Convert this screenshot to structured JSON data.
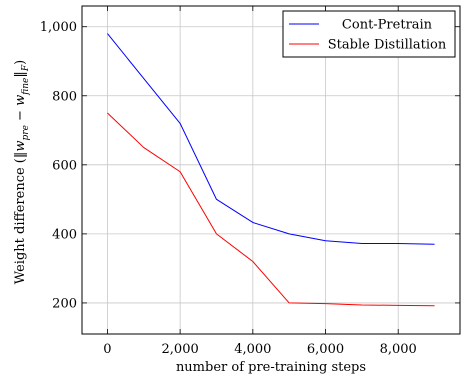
{
  "chart_data": {
    "type": "line",
    "xlabel": "number of pre-training steps",
    "ylabel": "Weight difference (||w_pre − w_fine||_F)",
    "ylabel_parts": {
      "prefix": "Weight difference (",
      "math": "‖w",
      "sub1": "pre",
      "minus": " − w",
      "sub2": "fine",
      "close": "‖",
      "sub3": "F",
      "suffix": ")"
    },
    "xlim": [
      -700,
      9700
    ],
    "ylim": [
      110,
      1060
    ],
    "x_ticks": [
      0,
      2000,
      4000,
      6000,
      8000
    ],
    "x_tick_labels": [
      "0",
      "2,000",
      "4,000",
      "6,000",
      "8,000"
    ],
    "y_ticks": [
      200,
      400,
      600,
      800,
      1000
    ],
    "y_tick_labels": [
      "200",
      "400",
      "600",
      "800",
      "1,000"
    ],
    "grid": true,
    "legend_position": "top-right",
    "series": [
      {
        "name": "Cont-Pretrain",
        "color": "#0000ff",
        "x": [
          0,
          1000,
          2000,
          3000,
          4000,
          5000,
          6000,
          7000,
          8000,
          9000
        ],
        "y": [
          980,
          850,
          720,
          500,
          433,
          400,
          380,
          372,
          372,
          370
        ]
      },
      {
        "name": "Stable Distillation",
        "color": "#ff0000",
        "x": [
          0,
          1000,
          2000,
          3000,
          4000,
          5000,
          6000,
          7000,
          8000,
          9000
        ],
        "y": [
          750,
          650,
          580,
          400,
          320,
          200,
          198,
          194,
          193,
          192
        ]
      }
    ]
  }
}
